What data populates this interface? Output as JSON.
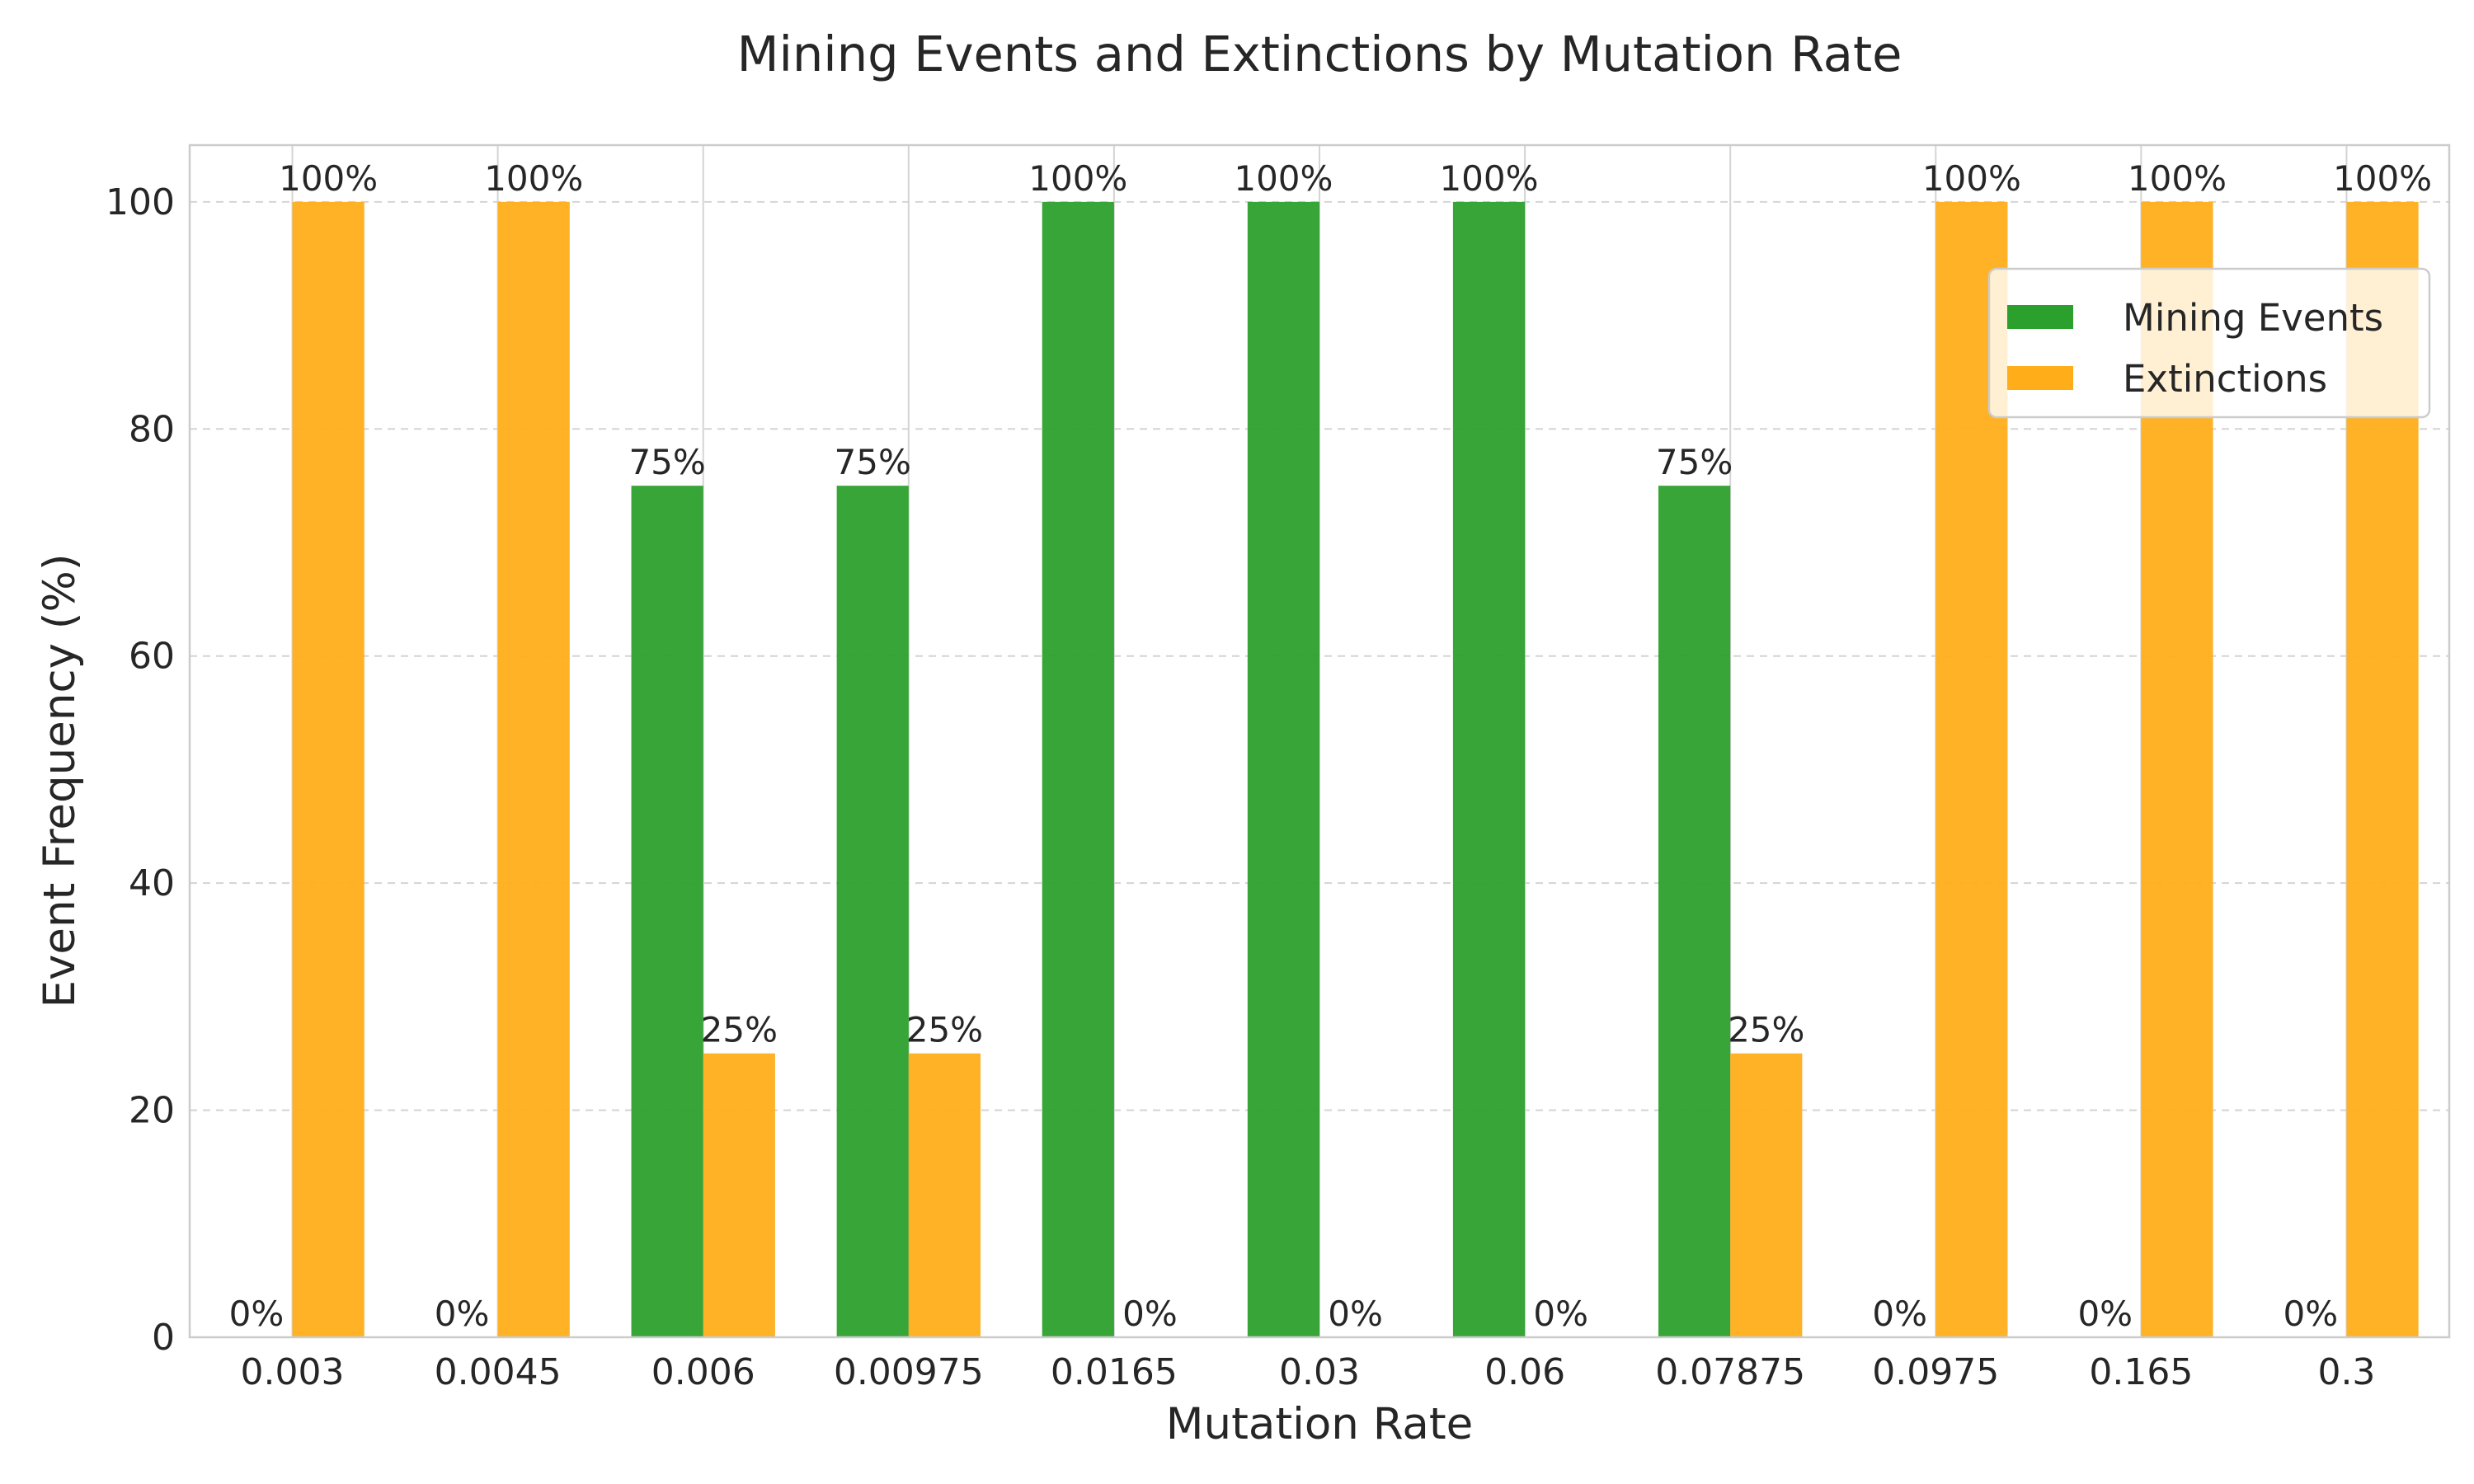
{
  "chart_data": {
    "type": "bar",
    "title": "Mining Events and Extinctions by Mutation Rate",
    "xlabel": "Mutation Rate",
    "ylabel": "Event Frequency (%)",
    "categories": [
      "0.003",
      "0.0045",
      "0.006",
      "0.00975",
      "0.0165",
      "0.03",
      "0.06",
      "0.07875",
      "0.0975",
      "0.165",
      "0.3"
    ],
    "series": [
      {
        "name": "Mining Events",
        "color": "#2ca02c",
        "values": [
          0,
          0,
          75,
          75,
          100,
          100,
          100,
          75,
          0,
          0,
          0
        ],
        "labels": [
          "0%",
          "0%",
          "75%",
          "75%",
          "100%",
          "100%",
          "100%",
          "75%",
          "0%",
          "0%",
          "0%"
        ]
      },
      {
        "name": "Extinctions",
        "color": "#ffae1a",
        "values": [
          100,
          100,
          25,
          25,
          0,
          0,
          0,
          25,
          100,
          100,
          100
        ],
        "labels": [
          "100%",
          "100%",
          "25%",
          "25%",
          "0%",
          "0%",
          "0%",
          "25%",
          "100%",
          "100%",
          "100%"
        ]
      }
    ],
    "ylim": [
      0,
      105
    ],
    "yticks": [
      0,
      20,
      40,
      60,
      80,
      100
    ],
    "grid": true,
    "legend_position": "upper-right"
  }
}
